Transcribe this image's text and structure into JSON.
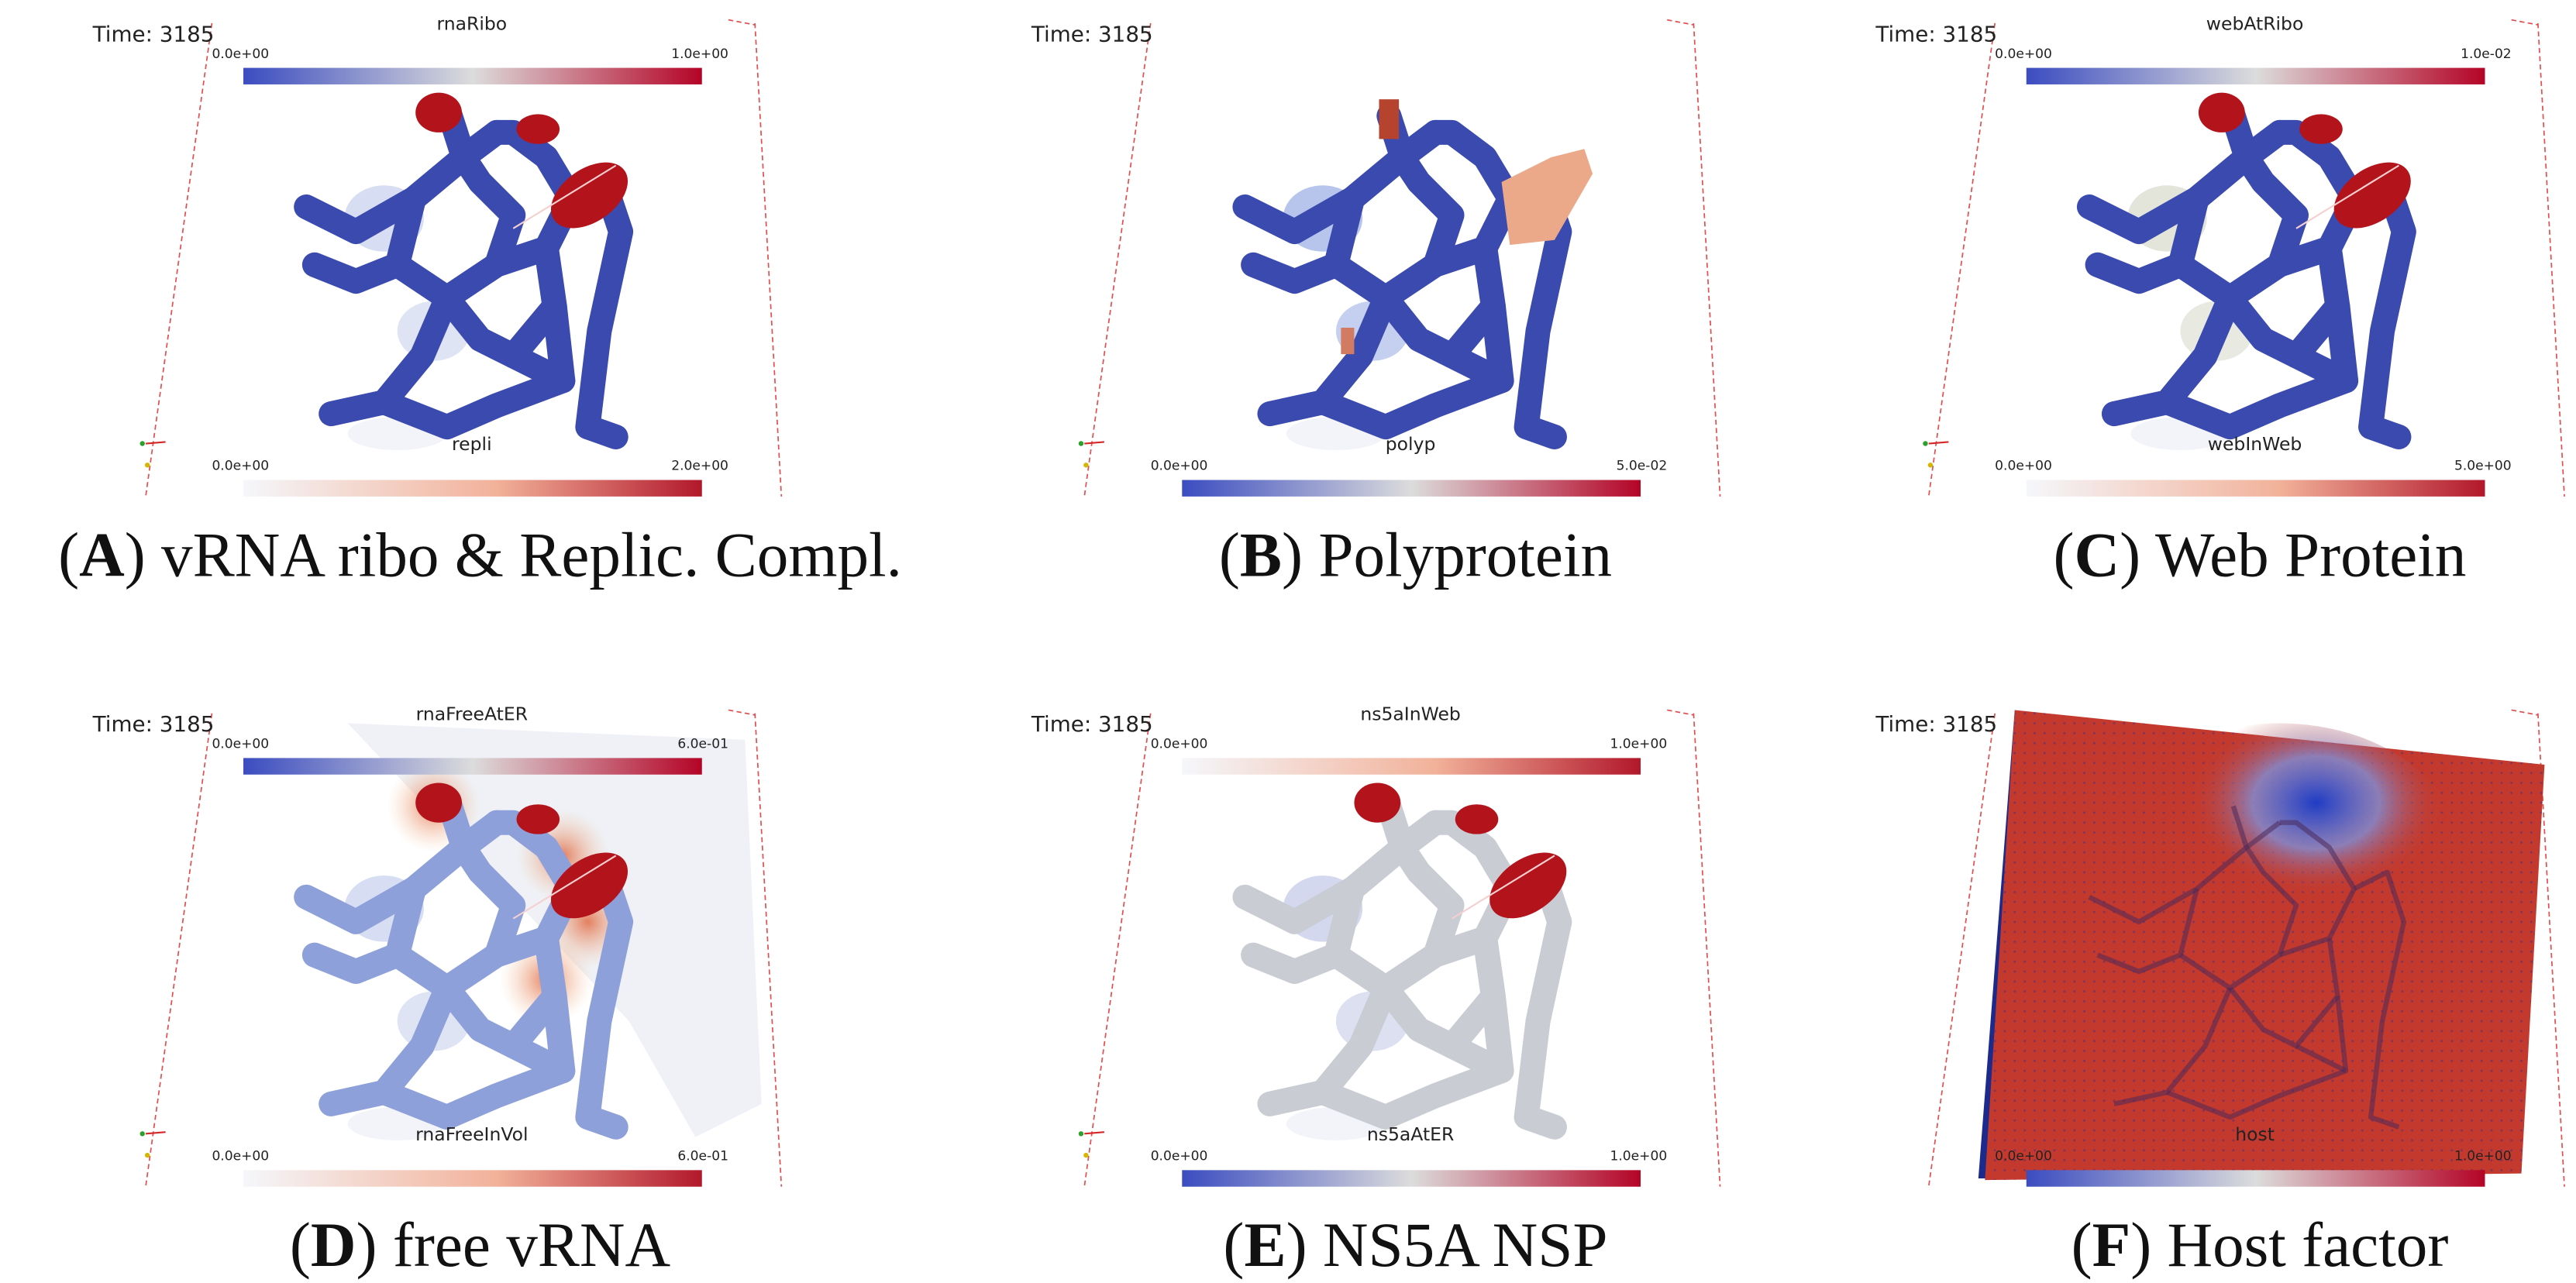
{
  "panels": [
    {
      "time": "Time: 3185",
      "top_bar": {
        "title": "rnaRibo",
        "min": "0.0e+00",
        "max": "1.0e+00",
        "colormap": "coolwarm"
      },
      "bottom_bar": {
        "title": "repli",
        "min": "0.0e+00",
        "max": "2.0e+00",
        "colormap": "white-red"
      },
      "caption": "(A) vRNA ribo & Replic. Compl."
    },
    {
      "time": "Time: 3185",
      "bottom_bar": {
        "title": "polyp",
        "min": "0.0e+00",
        "max": "5.0e-02",
        "colormap": "coolwarm"
      },
      "caption": "(B) Polyprotein"
    },
    {
      "time": "Time: 3185",
      "top_bar": {
        "title": "webAtRibo",
        "min": "0.0e+00",
        "max": "1.0e-02",
        "colormap": "coolwarm"
      },
      "bottom_bar": {
        "title": "webInWeb",
        "min": "0.0e+00",
        "max": "5.0e+00",
        "colormap": "white-red"
      },
      "caption": "(C) Web Protein"
    },
    {
      "time": "Time: 3185",
      "top_bar": {
        "title": "rnaFreeAtER",
        "min": "0.0e+00",
        "max": "6.0e-01",
        "colormap": "coolwarm"
      },
      "bottom_bar": {
        "title": "rnaFreeInVol",
        "min": "0.0e+00",
        "max": "6.0e-01",
        "colormap": "white-red"
      },
      "caption": "(D) free vRNA"
    },
    {
      "time": "Time: 3185",
      "top_bar": {
        "title": "ns5aInWeb",
        "min": "0.0e+00",
        "max": "1.0e+00",
        "colormap": "white-red"
      },
      "bottom_bar": {
        "title": "ns5aAtER",
        "min": "0.0e+00",
        "max": "1.0e+00",
        "colormap": "coolwarm"
      },
      "caption": "(E) NS5A NSP"
    },
    {
      "time": "Time: 3185",
      "bottom_bar": {
        "title": "host",
        "min": "0.0e+00",
        "max": "1.0e+00",
        "colormap": "coolwarm"
      },
      "caption": "(F) Host factor"
    }
  ]
}
